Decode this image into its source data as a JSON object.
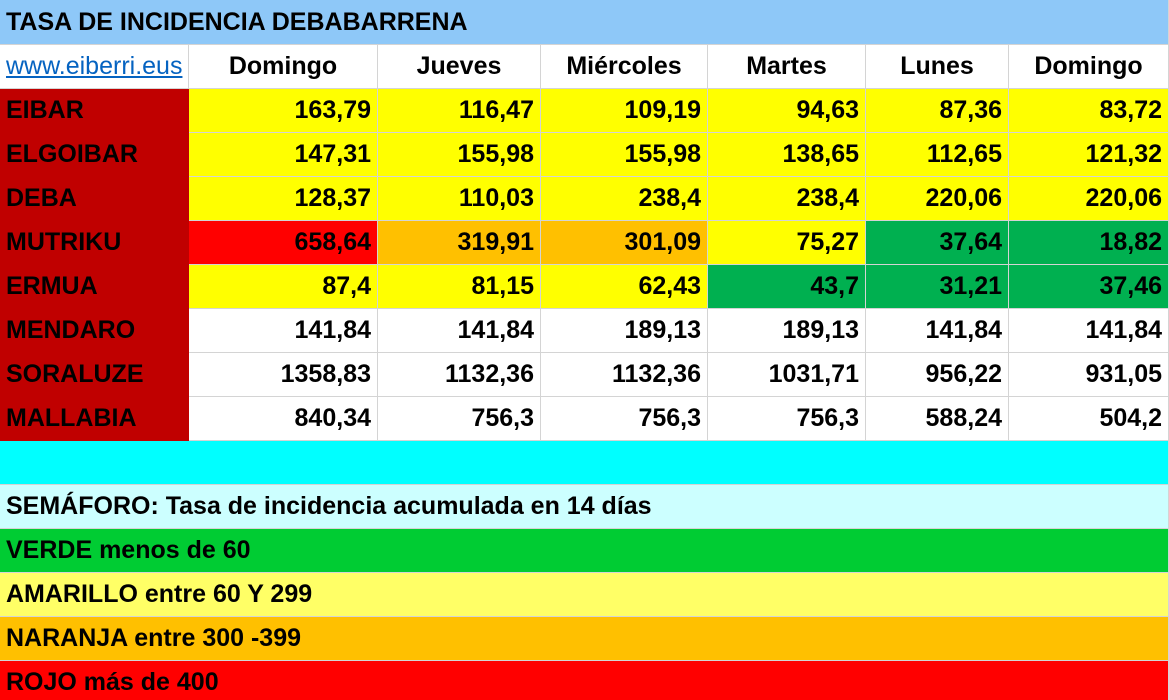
{
  "title": "TASA DE INCIDENCIA DEBABARRENA",
  "title_color": "#8ec8f8",
  "link": "www.eiberri.eus",
  "headers": [
    "Domingo",
    "Jueves",
    "Miércoles",
    "Martes",
    "Lunes",
    "Domingo"
  ],
  "name_color": "#c00000",
  "rows": [
    {
      "name": "EIBAR",
      "values": [
        "163,79",
        "116,47",
        "109,19",
        "94,63",
        "87,36",
        "83,72"
      ],
      "colors": [
        "#ffff00",
        "#ffff00",
        "#ffff00",
        "#ffff00",
        "#ffff00",
        "#ffff00"
      ]
    },
    {
      "name": "ELGOIBAR",
      "values": [
        "147,31",
        "155,98",
        "155,98",
        "138,65",
        "112,65",
        "121,32"
      ],
      "colors": [
        "#ffff00",
        "#ffff00",
        "#ffff00",
        "#ffff00",
        "#ffff00",
        "#ffff00"
      ]
    },
    {
      "name": "DEBA",
      "values": [
        "128,37",
        "110,03",
        "238,4",
        "238,4",
        "220,06",
        "220,06"
      ],
      "colors": [
        "#ffff00",
        "#ffff00",
        "#ffff00",
        "#ffff00",
        "#ffff00",
        "#ffff00"
      ]
    },
    {
      "name": "MUTRIKU",
      "values": [
        "658,64",
        "319,91",
        "301,09",
        "75,27",
        "37,64",
        "18,82"
      ],
      "colors": [
        "#ff0000",
        "#ffc000",
        "#ffc000",
        "#ffff00",
        "#00b050",
        "#00b050"
      ]
    },
    {
      "name": "ERMUA",
      "values": [
        "87,4",
        "81,15",
        "62,43",
        "43,7",
        "31,21",
        "37,46"
      ],
      "colors": [
        "#ffff00",
        "#ffff00",
        "#ffff00",
        "#00b050",
        "#00b050",
        "#00b050"
      ]
    },
    {
      "name": "MENDARO",
      "values": [
        "141,84",
        "141,84",
        "189,13",
        "189,13",
        "141,84",
        "141,84"
      ],
      "colors": [
        "#ffffff",
        "#ffffff",
        "#ffffff",
        "#ffffff",
        "#ffffff",
        "#ffffff"
      ]
    },
    {
      "name": "SORALUZE",
      "values": [
        "1358,83",
        "1132,36",
        "1132,36",
        "1031,71",
        "956,22",
        "931,05"
      ],
      "colors": [
        "#ffffff",
        "#ffffff",
        "#ffffff",
        "#ffffff",
        "#ffffff",
        "#ffffff"
      ]
    },
    {
      "name": "MALLABIA",
      "values": [
        "840,34",
        "756,3",
        "756,3",
        "756,3",
        "588,24",
        "504,2"
      ],
      "colors": [
        "#ffffff",
        "#ffffff",
        "#ffffff",
        "#ffffff",
        "#ffffff",
        "#ffffff"
      ]
    }
  ],
  "spacer_color": "#00ffff",
  "legend": [
    {
      "text": "SEMÁFORO:  Tasa de incidencia acumulada en 14 días",
      "color": "#ccffff"
    },
    {
      "text": "VERDE menos de 60",
      "color": "#00cc33"
    },
    {
      "text": "AMARILLO entre 60 Y 299",
      "color": "#ffff66"
    },
    {
      "text": "NARANJA entre 300 -399",
      "color": "#ffc000"
    },
    {
      "text": "ROJO más de 400",
      "color": "#ff0000"
    }
  ]
}
